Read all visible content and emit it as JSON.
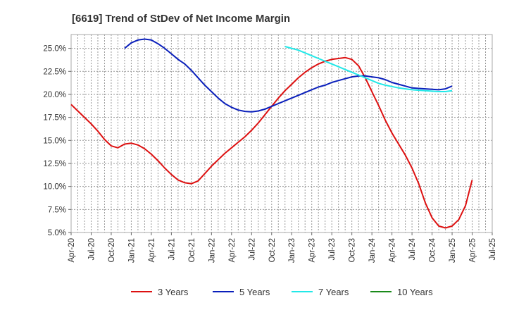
{
  "chart_data": {
    "type": "line",
    "title": "[6619]  Trend of StDev of Net Income Margin",
    "xlabel": "",
    "ylabel": "",
    "x_ticks": [
      "Apr-20",
      "Jul-20",
      "Oct-20",
      "Jan-21",
      "Apr-21",
      "Jul-21",
      "Oct-21",
      "Jan-22",
      "Apr-22",
      "Jul-22",
      "Oct-22",
      "Jan-23",
      "Apr-23",
      "Jul-23",
      "Oct-23",
      "Jan-24",
      "Apr-24",
      "Jul-24",
      "Oct-24",
      "Jan-25",
      "Apr-25",
      "Jul-25"
    ],
    "y_ticks": [
      "5.0%",
      "7.5%",
      "10.0%",
      "12.5%",
      "15.0%",
      "17.5%",
      "20.0%",
      "22.5%",
      "25.0%"
    ],
    "ylim": [
      5.0,
      26.5
    ],
    "x_range": [
      "Apr-20",
      "Jul-25"
    ],
    "grid": true,
    "legend_position": "bottom",
    "series": [
      {
        "name": "3 Years",
        "color": "#dd1111",
        "points": [
          [
            "2020-04",
            18.9
          ],
          [
            "2020-05",
            18.2
          ],
          [
            "2020-06",
            17.5
          ],
          [
            "2020-07",
            16.8
          ],
          [
            "2020-08",
            16.0
          ],
          [
            "2020-09",
            15.1
          ],
          [
            "2020-10",
            14.4
          ],
          [
            "2020-11",
            14.2
          ],
          [
            "2020-12",
            14.6
          ],
          [
            "2021-01",
            14.7
          ],
          [
            "2021-02",
            14.5
          ],
          [
            "2021-03",
            14.1
          ],
          [
            "2021-04",
            13.5
          ],
          [
            "2021-05",
            12.8
          ],
          [
            "2021-06",
            12.0
          ],
          [
            "2021-07",
            11.3
          ],
          [
            "2021-08",
            10.7
          ],
          [
            "2021-09",
            10.4
          ],
          [
            "2021-10",
            10.3
          ],
          [
            "2021-11",
            10.6
          ],
          [
            "2021-12",
            11.4
          ],
          [
            "2022-01",
            12.2
          ],
          [
            "2022-02",
            12.9
          ],
          [
            "2022-03",
            13.6
          ],
          [
            "2022-04",
            14.2
          ],
          [
            "2022-05",
            14.8
          ],
          [
            "2022-06",
            15.4
          ],
          [
            "2022-07",
            16.1
          ],
          [
            "2022-08",
            16.9
          ],
          [
            "2022-09",
            17.8
          ],
          [
            "2022-10",
            18.7
          ],
          [
            "2022-11",
            19.6
          ],
          [
            "2022-12",
            20.4
          ],
          [
            "2023-01",
            21.1
          ],
          [
            "2023-02",
            21.8
          ],
          [
            "2023-03",
            22.4
          ],
          [
            "2023-04",
            22.9
          ],
          [
            "2023-05",
            23.3
          ],
          [
            "2023-06",
            23.6
          ],
          [
            "2023-07",
            23.8
          ],
          [
            "2023-08",
            23.9
          ],
          [
            "2023-09",
            24.0
          ],
          [
            "2023-10",
            23.8
          ],
          [
            "2023-11",
            23.1
          ],
          [
            "2023-12",
            21.8
          ],
          [
            "2024-01",
            20.3
          ],
          [
            "2024-02",
            18.8
          ],
          [
            "2024-03",
            17.2
          ],
          [
            "2024-04",
            15.8
          ],
          [
            "2024-05",
            14.6
          ],
          [
            "2024-06",
            13.4
          ],
          [
            "2024-07",
            12.0
          ],
          [
            "2024-08",
            10.3
          ],
          [
            "2024-09",
            8.2
          ],
          [
            "2024-10",
            6.6
          ],
          [
            "2024-11",
            5.7
          ],
          [
            "2024-12",
            5.5
          ],
          [
            "2025-01",
            5.7
          ],
          [
            "2025-02",
            6.4
          ],
          [
            "2025-03",
            7.9
          ],
          [
            "2025-04",
            10.7
          ]
        ]
      },
      {
        "name": "5 Years",
        "color": "#0a1fbb",
        "points": [
          [
            "2020-12",
            25.0
          ],
          [
            "2021-01",
            25.6
          ],
          [
            "2021-02",
            25.9
          ],
          [
            "2021-03",
            26.0
          ],
          [
            "2021-04",
            25.9
          ],
          [
            "2021-05",
            25.5
          ],
          [
            "2021-06",
            25.0
          ],
          [
            "2021-07",
            24.4
          ],
          [
            "2021-08",
            23.8
          ],
          [
            "2021-09",
            23.3
          ],
          [
            "2021-10",
            22.6
          ],
          [
            "2021-11",
            21.8
          ],
          [
            "2021-12",
            21.0
          ],
          [
            "2022-01",
            20.3
          ],
          [
            "2022-02",
            19.6
          ],
          [
            "2022-03",
            19.0
          ],
          [
            "2022-04",
            18.6
          ],
          [
            "2022-05",
            18.3
          ],
          [
            "2022-06",
            18.15
          ],
          [
            "2022-07",
            18.1
          ],
          [
            "2022-08",
            18.2
          ],
          [
            "2022-09",
            18.4
          ],
          [
            "2022-10",
            18.7
          ],
          [
            "2022-11",
            19.0
          ],
          [
            "2022-12",
            19.3
          ],
          [
            "2023-01",
            19.6
          ],
          [
            "2023-02",
            19.9
          ],
          [
            "2023-03",
            20.2
          ],
          [
            "2023-04",
            20.5
          ],
          [
            "2023-05",
            20.8
          ],
          [
            "2023-06",
            21.0
          ],
          [
            "2023-07",
            21.3
          ],
          [
            "2023-08",
            21.5
          ],
          [
            "2023-09",
            21.7
          ],
          [
            "2023-10",
            21.9
          ],
          [
            "2023-11",
            22.0
          ],
          [
            "2023-12",
            22.0
          ],
          [
            "2024-01",
            21.9
          ],
          [
            "2024-02",
            21.8
          ],
          [
            "2024-03",
            21.6
          ],
          [
            "2024-04",
            21.3
          ],
          [
            "2024-05",
            21.1
          ],
          [
            "2024-06",
            20.9
          ],
          [
            "2024-07",
            20.7
          ],
          [
            "2024-08",
            20.65
          ],
          [
            "2024-09",
            20.6
          ],
          [
            "2024-10",
            20.55
          ],
          [
            "2024-11",
            20.5
          ],
          [
            "2024-12",
            20.6
          ],
          [
            "2025-01",
            20.9
          ]
        ]
      },
      {
        "name": "7 Years",
        "color": "#22e8e8",
        "points": [
          [
            "2022-12",
            25.2
          ],
          [
            "2023-01",
            25.0
          ],
          [
            "2023-02",
            24.8
          ],
          [
            "2023-03",
            24.5
          ],
          [
            "2023-04",
            24.2
          ],
          [
            "2023-05",
            23.9
          ],
          [
            "2023-06",
            23.6
          ],
          [
            "2023-07",
            23.3
          ],
          [
            "2023-08",
            23.0
          ],
          [
            "2023-09",
            22.7
          ],
          [
            "2023-10",
            22.4
          ],
          [
            "2023-11",
            22.1
          ],
          [
            "2023-12",
            21.8
          ],
          [
            "2024-01",
            21.5
          ],
          [
            "2024-02",
            21.2
          ],
          [
            "2024-03",
            21.0
          ],
          [
            "2024-04",
            20.85
          ],
          [
            "2024-05",
            20.7
          ],
          [
            "2024-06",
            20.6
          ],
          [
            "2024-07",
            20.5
          ],
          [
            "2024-08",
            20.45
          ],
          [
            "2024-09",
            20.4
          ],
          [
            "2024-10",
            20.35
          ],
          [
            "2024-11",
            20.3
          ],
          [
            "2024-12",
            20.3
          ],
          [
            "2025-01",
            20.4
          ]
        ]
      },
      {
        "name": "10 Years",
        "color": "#1a8a1a",
        "points": []
      }
    ]
  }
}
